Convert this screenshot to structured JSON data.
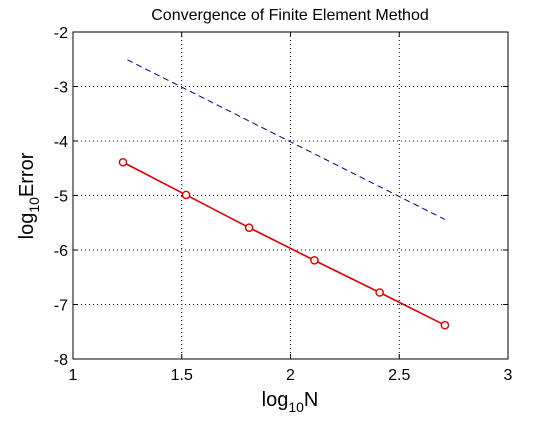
{
  "chart_data": {
    "type": "line",
    "title": "Convergence of Finite Element Method",
    "xlabel": {
      "base": "log",
      "subscript": "10",
      "rest": "N"
    },
    "ylabel": {
      "base": "log",
      "subscript": "10",
      "rest": "Error"
    },
    "xlim": [
      1,
      3
    ],
    "ylim": [
      -8,
      -2
    ],
    "xticks": [
      1,
      1.5,
      2,
      2.5,
      3
    ],
    "xtick_labels": [
      "1",
      "1.5",
      "2",
      "2.5",
      "3"
    ],
    "yticks": [
      -8,
      -7,
      -6,
      -5,
      -4,
      -3,
      -2
    ],
    "ytick_labels": [
      "-8",
      "-7",
      "-6",
      "-5",
      "-4",
      "-3",
      "-2"
    ],
    "grid": true,
    "series": [
      {
        "style": "solid",
        "marker": "circle",
        "color": "#dd0000",
        "x": [
          1.23,
          1.52,
          1.81,
          2.11,
          2.41,
          2.71
        ],
        "y": [
          -4.39,
          -4.99,
          -5.59,
          -6.19,
          -6.78,
          -7.38
        ]
      },
      {
        "style": "dashed",
        "marker": "none",
        "color": "#00008b",
        "x": [
          1.25,
          2.71
        ],
        "y": [
          -2.51,
          -5.44
        ]
      }
    ]
  }
}
